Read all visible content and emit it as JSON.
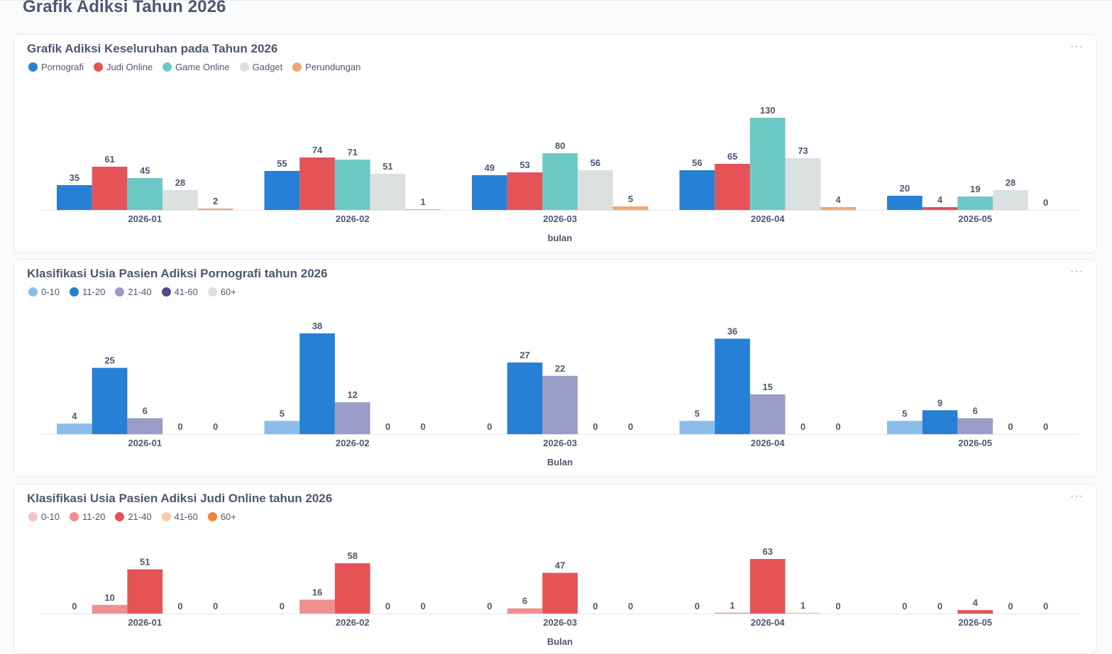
{
  "page": {
    "title": "Grafik Adiksi Tahun 2026"
  },
  "cards": [
    {
      "title": "Grafik Adiksi Keseluruhan pada Tahun 2026",
      "menu_label": "···",
      "chart_data": {
        "type": "bar",
        "title": "Grafik Adiksi Keseluruhan pada Tahun 2026",
        "categories": [
          "2026-01",
          "2026-02",
          "2026-03",
          "2026-04",
          "2026-05"
        ],
        "xlabel": "bulan",
        "ylabel": "",
        "ylim": [
          0,
          130
        ],
        "grid": false,
        "legend_position": "top-left",
        "series": [
          {
            "name": "Pornografi",
            "color": "#2580d6",
            "values": [
              35,
              55,
              49,
              56,
              20
            ]
          },
          {
            "name": "Judi Online",
            "color": "#e55357",
            "values": [
              61,
              74,
              53,
              65,
              4
            ]
          },
          {
            "name": "Game Online",
            "color": "#6cc9c5",
            "values": [
              45,
              71,
              80,
              130,
              19
            ]
          },
          {
            "name": "Gadget",
            "color": "#dcdfe0",
            "values": [
              28,
              51,
              56,
              73,
              28
            ]
          },
          {
            "name": "Perundungan",
            "color": "#f1a56f",
            "values": [
              2,
              1,
              5,
              4,
              0
            ]
          }
        ]
      }
    },
    {
      "title": "Klasifikasi Usia Pasien Adiksi Pornografi tahun 2026",
      "menu_label": "···",
      "chart_data": {
        "type": "bar",
        "title": "Klasifikasi Usia Pasien Adiksi Pornografi tahun 2026",
        "categories": [
          "2026-01",
          "2026-02",
          "2026-03",
          "2026-04",
          "2026-05"
        ],
        "xlabel": "Bulan",
        "ylabel": "",
        "ylim": [
          0,
          38
        ],
        "grid": false,
        "legend_position": "top-left",
        "series": [
          {
            "name": "0-10",
            "color": "#8cbdea",
            "values": [
              4,
              5,
              0,
              5,
              5
            ]
          },
          {
            "name": "11-20",
            "color": "#2580d6",
            "values": [
              25,
              38,
              27,
              36,
              9
            ]
          },
          {
            "name": "21-40",
            "color": "#9b9cc8",
            "values": [
              6,
              12,
              22,
              15,
              6
            ]
          },
          {
            "name": "41-60",
            "color": "#4d4e8a",
            "values": [
              0,
              0,
              0,
              0,
              0
            ]
          },
          {
            "name": "60+",
            "color": "#dcdfe0",
            "values": [
              0,
              0,
              0,
              0,
              0
            ]
          }
        ]
      }
    },
    {
      "title": "Klasifikasi Usia Pasien Adiksi Judi Online tahun 2026",
      "menu_label": "···",
      "chart_data": {
        "type": "bar",
        "title": "Klasifikasi Usia Pasien Adiksi Judi Online tahun 2026",
        "categories": [
          "2026-01",
          "2026-02",
          "2026-03",
          "2026-04",
          "2026-05"
        ],
        "xlabel": "Bulan",
        "ylabel": "",
        "ylim": [
          0,
          63
        ],
        "grid": false,
        "legend_position": "top-left",
        "series": [
          {
            "name": "0-10",
            "color": "#f3c4c4",
            "values": [
              0,
              0,
              0,
              0,
              0
            ]
          },
          {
            "name": "11-20",
            "color": "#ee908f",
            "values": [
              10,
              16,
              6,
              1,
              0
            ]
          },
          {
            "name": "21-40",
            "color": "#e55357",
            "values": [
              51,
              58,
              47,
              63,
              4
            ]
          },
          {
            "name": "41-60",
            "color": "#f7cba8",
            "values": [
              0,
              0,
              0,
              1,
              0
            ]
          },
          {
            "name": "60+",
            "color": "#ef8433",
            "values": [
              0,
              0,
              0,
              0,
              0
            ]
          }
        ]
      }
    }
  ]
}
